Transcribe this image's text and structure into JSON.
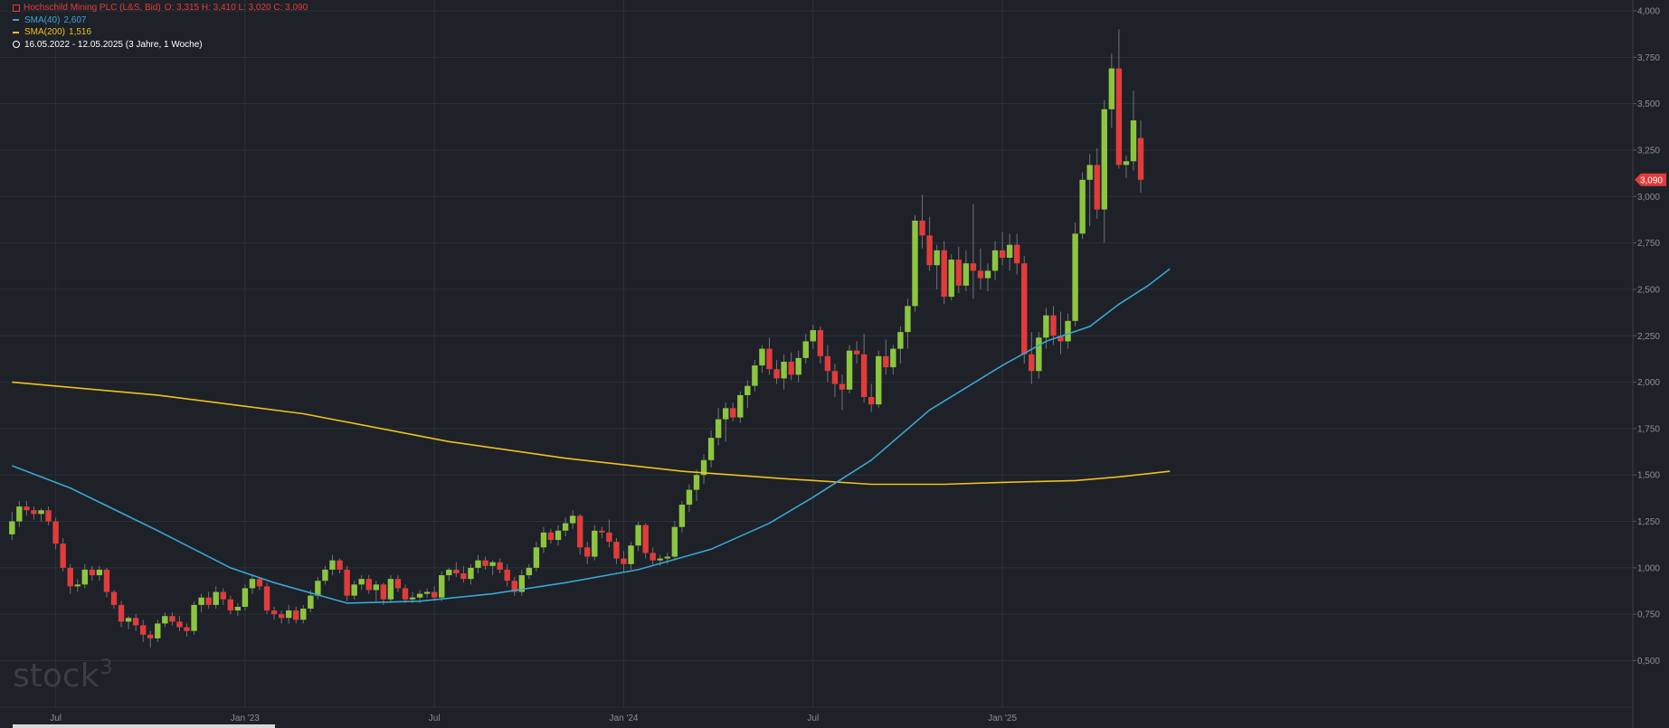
{
  "legend": {
    "instrument": "Hochschild Mining PLC (L&S, Bid)",
    "ohlc": "O: 3,315  H: 3,410  L: 3,020  C: 3,090",
    "sma40_label": "SMA(40)",
    "sma40_value": "2,607",
    "sma200_label": "SMA(200)",
    "sma200_value": "1,516",
    "range": "16.05.2022 - 12.05.2025  (3 Jahre, 1 Woche)"
  },
  "logo": {
    "text": "stock",
    "sup": "3"
  },
  "colors": {
    "background": "#1e2127",
    "grid": "#2c3038",
    "up": "#8cc63f",
    "down": "#e23b3b",
    "sma40": "#3aa6d4",
    "sma200": "#f0c020",
    "price_badge": "#e23b3b"
  },
  "chart_data": {
    "type": "candlestick",
    "period": "weekly",
    "y_ticks": [
      "4,000",
      "3,750",
      "3,500",
      "3,250",
      "3,000",
      "2,750",
      "2,500",
      "2,250",
      "2,000",
      "1,750",
      "1,500",
      "1,250",
      "1,000",
      "0,750",
      "0,500"
    ],
    "y_range": [
      0.4,
      4.0
    ],
    "x_labels": [
      "Jul",
      "Jan '23",
      "Jul",
      "Jan '24",
      "Jul",
      "Jan '25"
    ],
    "x_label_week_index": [
      6,
      32,
      58,
      84,
      110,
      136
    ],
    "last_price_label": "3,090",
    "last_price": 3.09,
    "sma40": {
      "label": "SMA(40)",
      "value": 2.607,
      "points": [
        [
          0,
          1.55
        ],
        [
          8,
          1.43
        ],
        [
          20,
          1.2
        ],
        [
          30,
          1.0
        ],
        [
          36,
          0.92
        ],
        [
          46,
          0.81
        ],
        [
          56,
          0.82
        ],
        [
          66,
          0.86
        ],
        [
          76,
          0.92
        ],
        [
          86,
          0.99
        ],
        [
          96,
          1.1
        ],
        [
          104,
          1.24
        ],
        [
          110,
          1.38
        ],
        [
          118,
          1.58
        ],
        [
          126,
          1.85
        ],
        [
          136,
          2.09
        ],
        [
          142,
          2.22
        ],
        [
          148,
          2.3
        ],
        [
          152,
          2.42
        ],
        [
          156,
          2.52
        ],
        [
          159,
          2.61
        ]
      ]
    },
    "sma200": {
      "label": "SMA(200)",
      "value": 1.516,
      "points": [
        [
          0,
          2.0
        ],
        [
          20,
          1.93
        ],
        [
          40,
          1.83
        ],
        [
          60,
          1.68
        ],
        [
          76,
          1.59
        ],
        [
          92,
          1.52
        ],
        [
          106,
          1.48
        ],
        [
          118,
          1.45
        ],
        [
          128,
          1.45
        ],
        [
          136,
          1.46
        ],
        [
          146,
          1.47
        ],
        [
          152,
          1.49
        ],
        [
          159,
          1.52
        ]
      ]
    },
    "candles": [
      [
        1.18,
        1.3,
        1.15,
        1.25
      ],
      [
        1.25,
        1.36,
        1.22,
        1.33
      ],
      [
        1.33,
        1.36,
        1.28,
        1.31
      ],
      [
        1.31,
        1.33,
        1.26,
        1.29
      ],
      [
        1.29,
        1.32,
        1.25,
        1.31
      ],
      [
        1.31,
        1.33,
        1.23,
        1.25
      ],
      [
        1.25,
        1.27,
        1.1,
        1.13
      ],
      [
        1.13,
        1.16,
        0.98,
        1.0
      ],
      [
        1.0,
        1.02,
        0.86,
        0.9
      ],
      [
        0.9,
        0.94,
        0.87,
        0.91
      ],
      [
        0.91,
        1.02,
        0.89,
        0.99
      ],
      [
        0.99,
        1.01,
        0.93,
        0.96
      ],
      [
        0.96,
        1.01,
        0.93,
        0.99
      ],
      [
        0.99,
        1.0,
        0.84,
        0.87
      ],
      [
        0.87,
        0.88,
        0.78,
        0.8
      ],
      [
        0.8,
        0.82,
        0.68,
        0.71
      ],
      [
        0.71,
        0.74,
        0.67,
        0.73
      ],
      [
        0.73,
        0.75,
        0.66,
        0.69
      ],
      [
        0.69,
        0.72,
        0.6,
        0.64
      ],
      [
        0.64,
        0.66,
        0.57,
        0.62
      ],
      [
        0.62,
        0.72,
        0.6,
        0.7
      ],
      [
        0.7,
        0.76,
        0.68,
        0.74
      ],
      [
        0.74,
        0.76,
        0.69,
        0.71
      ],
      [
        0.71,
        0.74,
        0.66,
        0.68
      ],
      [
        0.68,
        0.7,
        0.63,
        0.66
      ],
      [
        0.66,
        0.82,
        0.64,
        0.8
      ],
      [
        0.8,
        0.86,
        0.76,
        0.84
      ],
      [
        0.84,
        0.87,
        0.78,
        0.8
      ],
      [
        0.8,
        0.9,
        0.78,
        0.87
      ],
      [
        0.87,
        0.89,
        0.8,
        0.83
      ],
      [
        0.83,
        0.85,
        0.75,
        0.77
      ],
      [
        0.77,
        0.81,
        0.74,
        0.79
      ],
      [
        0.79,
        0.91,
        0.77,
        0.89
      ],
      [
        0.89,
        0.96,
        0.86,
        0.94
      ],
      [
        0.94,
        0.95,
        0.88,
        0.9
      ],
      [
        0.9,
        0.92,
        0.75,
        0.77
      ],
      [
        0.77,
        0.79,
        0.72,
        0.75
      ],
      [
        0.75,
        0.77,
        0.7,
        0.73
      ],
      [
        0.73,
        0.8,
        0.7,
        0.77
      ],
      [
        0.77,
        0.79,
        0.7,
        0.72
      ],
      [
        0.72,
        0.8,
        0.7,
        0.78
      ],
      [
        0.78,
        0.88,
        0.76,
        0.85
      ],
      [
        0.85,
        0.95,
        0.83,
        0.93
      ],
      [
        0.93,
        1.01,
        0.91,
        0.99
      ],
      [
        0.99,
        1.07,
        0.96,
        1.04
      ],
      [
        1.04,
        1.05,
        0.97,
        0.99
      ],
      [
        0.99,
        1.01,
        0.82,
        0.85
      ],
      [
        0.85,
        0.93,
        0.83,
        0.91
      ],
      [
        0.91,
        0.96,
        0.88,
        0.94
      ],
      [
        0.94,
        0.96,
        0.86,
        0.88
      ],
      [
        0.88,
        0.93,
        0.82,
        0.91
      ],
      [
        0.91,
        0.92,
        0.8,
        0.83
      ],
      [
        0.83,
        0.96,
        0.81,
        0.94
      ],
      [
        0.94,
        0.96,
        0.87,
        0.89
      ],
      [
        0.89,
        0.91,
        0.81,
        0.83
      ],
      [
        0.83,
        0.87,
        0.81,
        0.84
      ],
      [
        0.84,
        0.88,
        0.81,
        0.86
      ],
      [
        0.86,
        0.89,
        0.84,
        0.87
      ],
      [
        0.87,
        0.9,
        0.82,
        0.84
      ],
      [
        0.84,
        0.98,
        0.82,
        0.96
      ],
      [
        0.96,
        1.0,
        0.93,
        0.99
      ],
      [
        0.99,
        1.03,
        0.95,
        0.97
      ],
      [
        0.97,
        1.01,
        0.92,
        0.94
      ],
      [
        0.94,
        1.02,
        0.91,
        1.0
      ],
      [
        1.0,
        1.07,
        0.97,
        1.04
      ],
      [
        1.04,
        1.06,
        0.99,
        1.01
      ],
      [
        1.01,
        1.04,
        0.96,
        1.03
      ],
      [
        1.03,
        1.05,
        0.97,
        0.99
      ],
      [
        0.99,
        1.02,
        0.9,
        0.93
      ],
      [
        0.93,
        0.95,
        0.85,
        0.87
      ],
      [
        0.87,
        0.99,
        0.85,
        0.96
      ],
      [
        0.96,
        1.02,
        0.94,
        1.0
      ],
      [
        1.0,
        1.14,
        0.98,
        1.11
      ],
      [
        1.11,
        1.22,
        1.08,
        1.19
      ],
      [
        1.19,
        1.21,
        1.13,
        1.15
      ],
      [
        1.15,
        1.23,
        1.12,
        1.2
      ],
      [
        1.2,
        1.27,
        1.17,
        1.24
      ],
      [
        1.24,
        1.31,
        1.21,
        1.28
      ],
      [
        1.28,
        1.29,
        1.07,
        1.11
      ],
      [
        1.11,
        1.14,
        1.02,
        1.06
      ],
      [
        1.06,
        1.23,
        1.04,
        1.2
      ],
      [
        1.2,
        1.22,
        1.16,
        1.19
      ],
      [
        1.19,
        1.26,
        1.11,
        1.14
      ],
      [
        1.14,
        1.16,
        1.02,
        1.05
      ],
      [
        1.05,
        1.09,
        0.98,
        1.02
      ],
      [
        1.02,
        1.14,
        0.99,
        1.12
      ],
      [
        1.12,
        1.25,
        1.09,
        1.23
      ],
      [
        1.23,
        1.24,
        1.05,
        1.08
      ],
      [
        1.08,
        1.11,
        1.01,
        1.04
      ],
      [
        1.04,
        1.07,
        1.01,
        1.05
      ],
      [
        1.05,
        1.08,
        1.02,
        1.06
      ],
      [
        1.06,
        1.25,
        1.04,
        1.22
      ],
      [
        1.22,
        1.36,
        1.19,
        1.34
      ],
      [
        1.34,
        1.45,
        1.3,
        1.42
      ],
      [
        1.42,
        1.53,
        1.36,
        1.5
      ],
      [
        1.5,
        1.61,
        1.45,
        1.58
      ],
      [
        1.58,
        1.74,
        1.54,
        1.7
      ],
      [
        1.7,
        1.86,
        1.66,
        1.8
      ],
      [
        1.8,
        1.89,
        1.68,
        1.86
      ],
      [
        1.86,
        1.89,
        1.79,
        1.81
      ],
      [
        1.81,
        1.95,
        1.78,
        1.93
      ],
      [
        1.93,
        2.01,
        1.86,
        1.98
      ],
      [
        1.98,
        2.12,
        1.95,
        2.09
      ],
      [
        2.09,
        2.2,
        2.05,
        2.18
      ],
      [
        2.18,
        2.24,
        2.04,
        2.07
      ],
      [
        2.07,
        2.12,
        1.99,
        2.02
      ],
      [
        2.02,
        2.15,
        1.96,
        2.11
      ],
      [
        2.11,
        2.16,
        2.01,
        2.04
      ],
      [
        2.04,
        2.17,
        2.0,
        2.13
      ],
      [
        2.13,
        2.26,
        2.1,
        2.22
      ],
      [
        2.22,
        2.31,
        2.18,
        2.28
      ],
      [
        2.28,
        2.3,
        2.1,
        2.14
      ],
      [
        2.14,
        2.2,
        2.0,
        2.06
      ],
      [
        2.06,
        2.1,
        1.92,
        1.99
      ],
      [
        1.99,
        2.04,
        1.85,
        1.96
      ],
      [
        1.96,
        2.2,
        1.94,
        2.17
      ],
      [
        2.17,
        2.22,
        2.1,
        2.15
      ],
      [
        2.15,
        2.26,
        1.89,
        1.92
      ],
      [
        1.92,
        1.99,
        1.84,
        1.88
      ],
      [
        1.88,
        2.17,
        1.86,
        2.14
      ],
      [
        2.14,
        2.23,
        2.04,
        2.08
      ],
      [
        2.08,
        2.2,
        2.04,
        2.18
      ],
      [
        2.18,
        2.3,
        2.1,
        2.27
      ],
      [
        2.27,
        2.45,
        2.18,
        2.41
      ],
      [
        2.41,
        2.9,
        2.38,
        2.87
      ],
      [
        2.87,
        3.01,
        2.72,
        2.79
      ],
      [
        2.79,
        2.89,
        2.6,
        2.63
      ],
      [
        2.63,
        2.74,
        2.5,
        2.71
      ],
      [
        2.71,
        2.76,
        2.42,
        2.46
      ],
      [
        2.46,
        2.69,
        2.44,
        2.66
      ],
      [
        2.66,
        2.73,
        2.48,
        2.52
      ],
      [
        2.52,
        2.71,
        2.49,
        2.64
      ],
      [
        2.64,
        2.96,
        2.45,
        2.6
      ],
      [
        2.6,
        2.72,
        2.5,
        2.56
      ],
      [
        2.56,
        2.64,
        2.49,
        2.6
      ],
      [
        2.6,
        2.76,
        2.55,
        2.71
      ],
      [
        2.71,
        2.81,
        2.63,
        2.67
      ],
      [
        2.67,
        2.8,
        2.6,
        2.74
      ],
      [
        2.74,
        2.8,
        2.58,
        2.64
      ],
      [
        2.64,
        2.68,
        2.1,
        2.15
      ],
      [
        2.15,
        2.27,
        1.99,
        2.06
      ],
      [
        2.06,
        2.27,
        2.02,
        2.24
      ],
      [
        2.24,
        2.4,
        2.18,
        2.36
      ],
      [
        2.36,
        2.41,
        2.2,
        2.25
      ],
      [
        2.25,
        2.38,
        2.15,
        2.22
      ],
      [
        2.22,
        2.37,
        2.18,
        2.33
      ],
      [
        2.33,
        2.86,
        2.3,
        2.8
      ],
      [
        2.8,
        3.13,
        2.77,
        3.09
      ],
      [
        3.09,
        3.23,
        2.84,
        3.17
      ],
      [
        3.17,
        3.26,
        2.88,
        2.93
      ],
      [
        2.93,
        3.52,
        2.75,
        3.47
      ],
      [
        3.47,
        3.77,
        3.37,
        3.69
      ],
      [
        3.69,
        3.9,
        3.15,
        3.17
      ],
      [
        3.17,
        3.22,
        3.1,
        3.19
      ],
      [
        3.19,
        3.57,
        3.14,
        3.41
      ],
      [
        3.315,
        3.41,
        3.02,
        3.09
      ]
    ]
  }
}
